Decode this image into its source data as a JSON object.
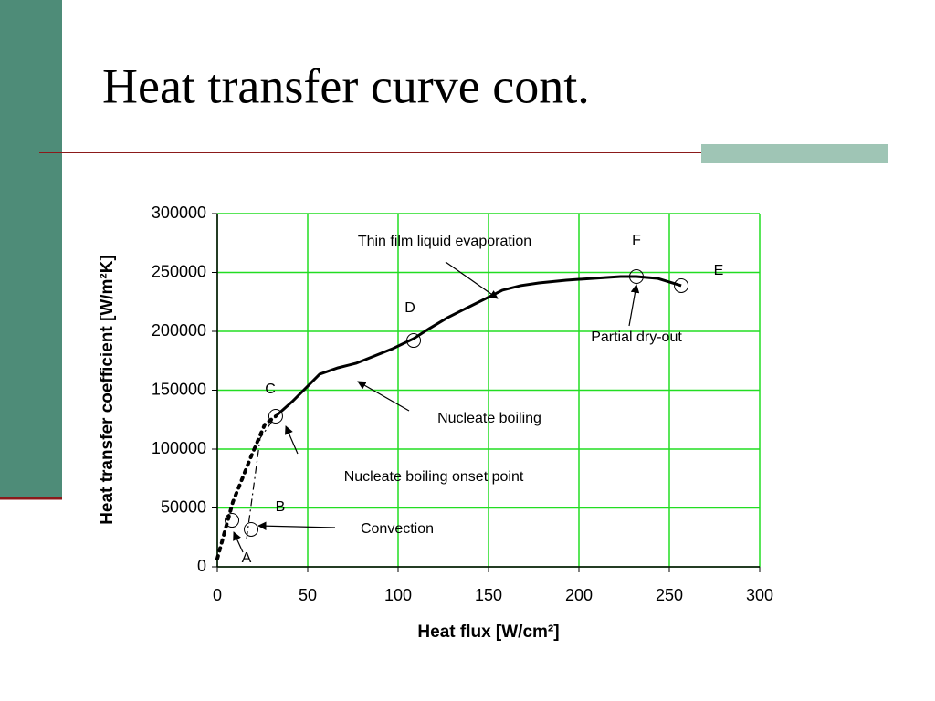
{
  "chart_data": {
    "type": "line",
    "title": "Heat transfer curve cont.",
    "xlabel": "Heat flux [W/cm²]",
    "ylabel": "Heat transfer coefficient [W/m²K]",
    "xlim": [
      0,
      300
    ],
    "xticks": [
      0,
      50,
      100,
      150,
      200,
      250,
      300
    ],
    "ylim": [
      0,
      300000
    ],
    "yticks": [
      0,
      50000,
      100000,
      150000,
      200000,
      250000,
      300000
    ],
    "grid": true,
    "grid_color": "#22dd22",
    "series": [
      {
        "style": "solid",
        "color": "#000000",
        "x": [
          32.3,
          41.4,
          49,
          56.6,
          66.7,
          76.8,
          86.9,
          97,
          108.6,
          117.2,
          127.3,
          137.4,
          147.5,
          157.6,
          167.7,
          177.8,
          193,
          208,
          223,
          231.8,
          243.4,
          256.6
        ],
        "values": [
          127900,
          140300,
          151900,
          163600,
          169000,
          172900,
          179100,
          185300,
          193800,
          202300,
          211600,
          219400,
          227100,
          234900,
          238800,
          241100,
          243400,
          245000,
          246500,
          246500,
          245000,
          238800
        ]
      },
      {
        "style": "dotted",
        "color": "#000000",
        "x": [
          0,
          8.6,
          18.7,
          26.3,
          32.3
        ],
        "values": [
          7000,
          55000,
          93800,
          121000,
          127900
        ]
      },
      {
        "style": "dashdot",
        "color": "#000000",
        "x": [
          16.2,
          23.7,
          32.3
        ],
        "values": [
          24000,
          109300,
          127900
        ]
      },
      {
        "style": "markers",
        "color": "#000000",
        "x": [
          8.1,
          18.7,
          32.3,
          108.6,
          231.8,
          256.6
        ],
        "values": [
          39500,
          31800,
          127900,
          192200,
          246500,
          238800
        ]
      }
    ],
    "annotations": [
      "Thin film liquid evaporation",
      "F",
      "E",
      "D",
      "Partial dry-out",
      "C",
      "Nucleate boiling",
      "Nucleate boiling onset point",
      "B",
      "Convection",
      "A"
    ]
  }
}
